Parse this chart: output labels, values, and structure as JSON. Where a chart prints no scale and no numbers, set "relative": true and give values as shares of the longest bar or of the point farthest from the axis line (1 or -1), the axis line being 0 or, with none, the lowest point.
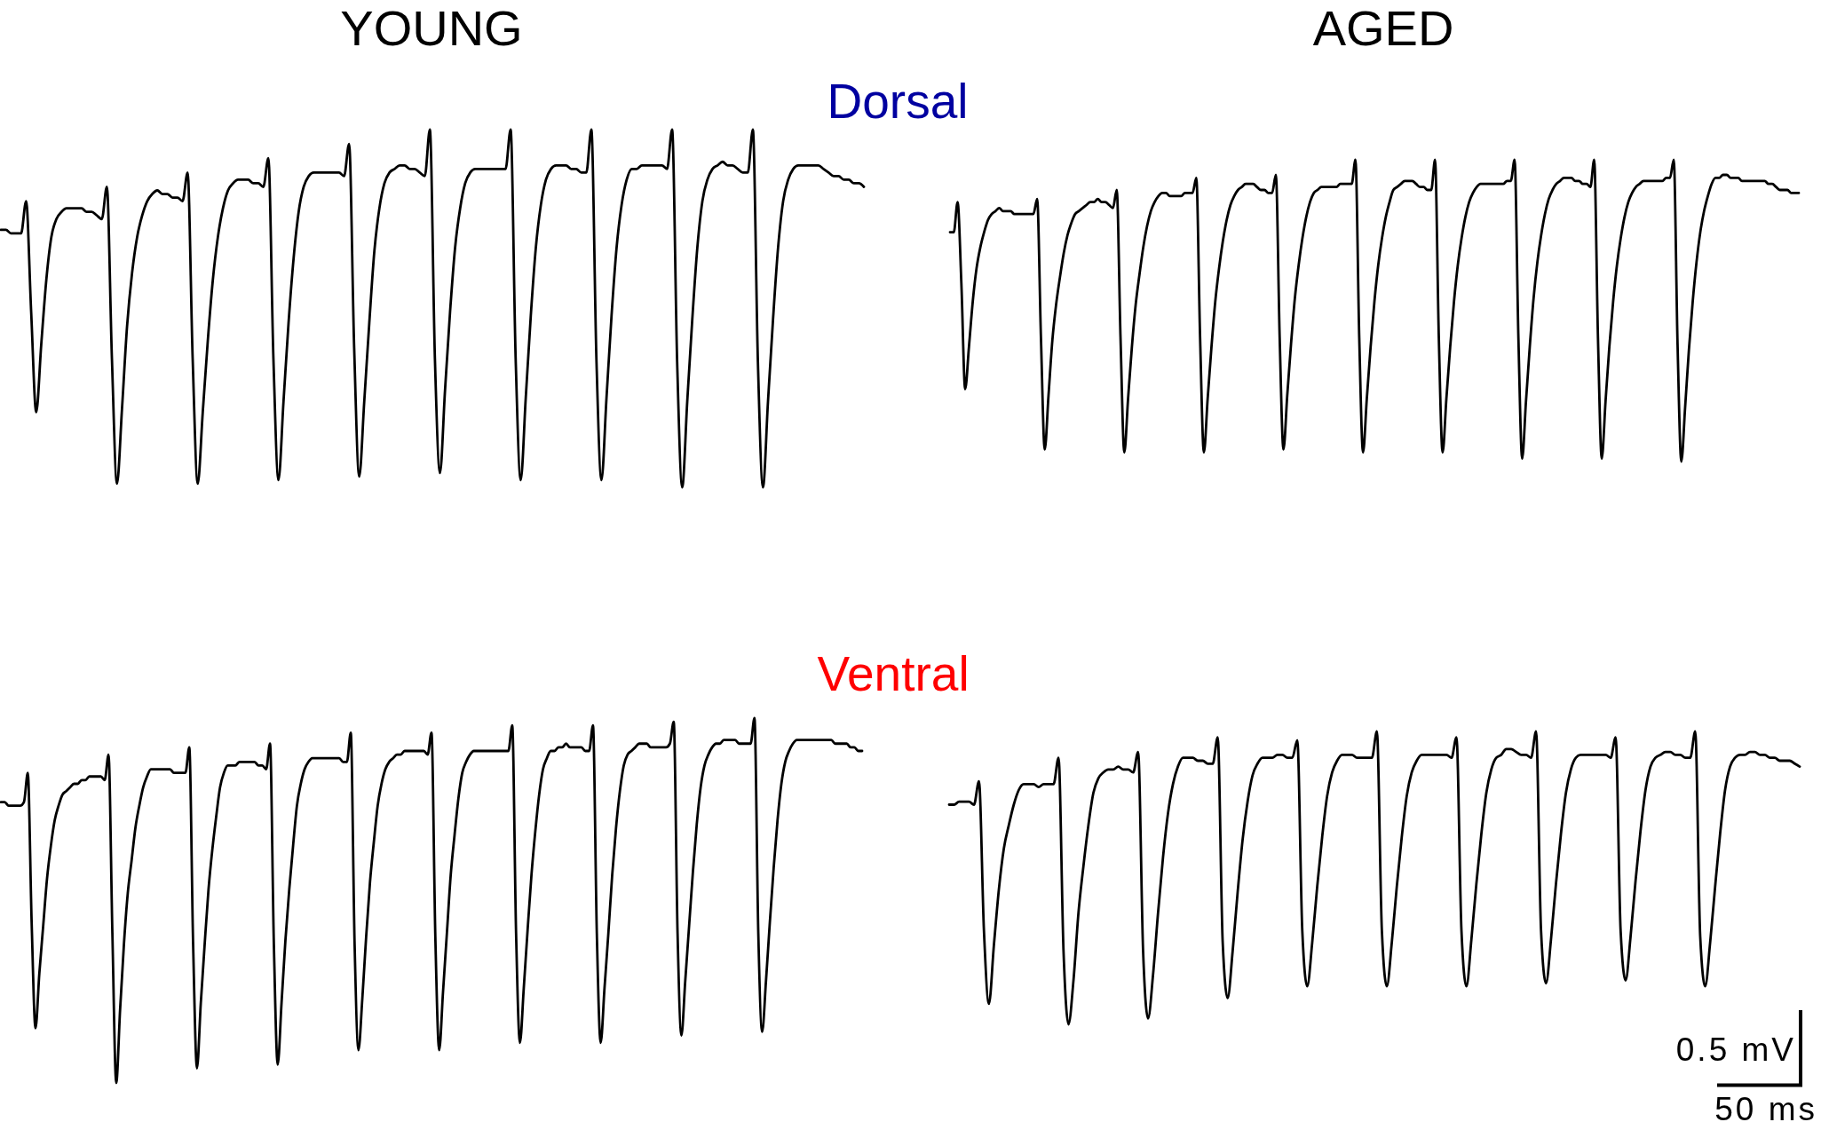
{
  "chart_data": [
    {
      "type": "line",
      "title": "YOUNG",
      "subtitle": "Dorsal",
      "relative": true,
      "color": "#000000",
      "categories": [
        null,
        null,
        null,
        null,
        null,
        null,
        null,
        null,
        null,
        null,
        null,
        null,
        null,
        null,
        null,
        null,
        null,
        null,
        null,
        null,
        null,
        null,
        null,
        null,
        null,
        null,
        null,
        null,
        null,
        null,
        null,
        null,
        null,
        null,
        null,
        null,
        null,
        null,
        null,
        null,
        null,
        null,
        null,
        null,
        null,
        null,
        null,
        null,
        null,
        null,
        null,
        null,
        null,
        null,
        null,
        null,
        null,
        null,
        null,
        null,
        null,
        null,
        null,
        null,
        null,
        null,
        null,
        null,
        null,
        null,
        null,
        null,
        null,
        null,
        null,
        null,
        null,
        null,
        null,
        null,
        null,
        null,
        null,
        null,
        null,
        null,
        null,
        null,
        null,
        null,
        null,
        null,
        null,
        null,
        null,
        null,
        null,
        null,
        null,
        null,
        null,
        null,
        null,
        null,
        null,
        null,
        null,
        null,
        null,
        null,
        null,
        null,
        null,
        null,
        null,
        null,
        null,
        null,
        null,
        null,
        null,
        null,
        null,
        null,
        null,
        null,
        null,
        null,
        null,
        null,
        null,
        null,
        null,
        null,
        null,
        null,
        null,
        null,
        null,
        null,
        null,
        null,
        null,
        null,
        null,
        null,
        null,
        null,
        null,
        null,
        null,
        null,
        null,
        null,
        null,
        null,
        null,
        null,
        null,
        null,
        null,
        null,
        null,
        null,
        null,
        null,
        null,
        null,
        null,
        null,
        null,
        null
      ],
      "values": [
        0.72,
        0.72,
        0.71,
        0.71,
        0.71,
        0.8,
        0.49,
        0.21,
        0.4,
        0.58,
        0.7,
        0.75,
        0.77,
        0.78,
        0.78,
        0.78,
        0.78,
        0.77,
        0.77,
        0.76,
        0.75,
        0.84,
        0.36,
        0.01,
        0.22,
        0.45,
        0.6,
        0.7,
        0.76,
        0.8,
        0.82,
        0.83,
        0.82,
        0.82,
        0.81,
        0.81,
        0.8,
        0.88,
        0.36,
        0.01,
        0.21,
        0.41,
        0.58,
        0.7,
        0.78,
        0.83,
        0.85,
        0.86,
        0.86,
        0.86,
        0.85,
        0.85,
        0.84,
        0.92,
        0.36,
        0.02,
        0.24,
        0.46,
        0.64,
        0.77,
        0.84,
        0.87,
        0.88,
        0.88,
        0.88,
        0.88,
        0.88,
        0.88,
        0.87,
        0.96,
        0.39,
        0.03,
        0.24,
        0.46,
        0.66,
        0.78,
        0.85,
        0.88,
        0.89,
        0.9,
        0.9,
        0.89,
        0.89,
        0.88,
        0.87,
        1,
        0.36,
        0.04,
        0.27,
        0.49,
        0.67,
        0.78,
        0.85,
        0.88,
        0.89,
        0.89,
        0.89,
        0.89,
        0.89,
        0.89,
        0.89,
        1,
        0.36,
        0.02,
        0.25,
        0.48,
        0.67,
        0.79,
        0.86,
        0.89,
        0.9,
        0.9,
        0.9,
        0.89,
        0.89,
        0.88,
        0.88,
        1,
        0.36,
        0.02,
        0.25,
        0.48,
        0.67,
        0.79,
        0.86,
        0.89,
        0.89,
        0.9,
        0.9,
        0.9,
        0.9,
        0.9,
        0.89,
        1,
        0.35,
        0,
        0.24,
        0.47,
        0.67,
        0.8,
        0.86,
        0.89,
        0.9,
        0.91,
        0.9,
        0.9,
        0.89,
        0.88,
        0.88,
        1,
        0.35,
        0,
        0.24,
        0.47,
        0.67,
        0.8,
        0.86,
        0.89,
        0.9,
        0.9,
        0.9,
        0.9,
        0.9,
        0.89,
        0.88,
        0.87,
        0.87,
        0.86,
        0.86,
        0.85,
        0.85,
        0.84
      ]
    },
    {
      "type": "line",
      "title": "AGED",
      "relative": true,
      "color": "#000000",
      "categories": [
        null,
        null,
        null,
        null,
        null,
        null,
        null,
        null,
        null,
        null,
        null,
        null,
        null,
        null,
        null,
        null,
        null,
        null,
        null,
        null,
        null,
        null,
        null,
        null,
        null,
        null,
        null,
        null,
        null,
        null,
        null,
        null,
        null,
        null,
        null,
        null,
        null,
        null,
        null,
        null,
        null,
        null,
        null,
        null,
        null,
        null,
        null,
        null,
        null,
        null,
        null,
        null,
        null,
        null,
        null,
        null,
        null,
        null,
        null,
        null,
        null,
        null,
        null,
        null,
        null,
        null,
        null,
        null,
        null,
        null,
        null,
        null,
        null,
        null,
        null,
        null,
        null,
        null,
        null,
        null,
        null,
        null,
        null,
        null,
        null,
        null,
        null,
        null,
        null,
        null,
        null,
        null,
        null,
        null,
        null,
        null,
        null,
        null,
        null,
        null,
        null,
        null,
        null,
        null,
        null,
        null,
        null,
        null,
        null,
        null,
        null,
        null,
        null,
        null,
        null,
        null,
        null,
        null,
        null,
        null,
        null,
        null,
        null,
        null,
        null,
        null,
        null,
        null,
        null,
        null,
        null,
        null,
        null,
        null,
        null,
        null,
        null,
        null,
        null,
        null,
        null,
        null,
        null,
        null,
        null,
        null,
        null,
        null,
        null,
        null,
        null,
        null,
        null,
        null,
        null,
        null,
        null,
        null,
        null,
        null,
        null,
        null,
        null,
        null,
        null,
        null,
        null,
        null,
        null,
        null,
        null,
        null,
        null,
        null,
        null,
        null,
        null,
        null,
        null,
        null,
        null,
        null,
        null,
        null,
        null,
        null,
        null,
        null,
        null,
        null,
        null,
        null,
        null,
        null,
        null,
        null,
        null,
        null,
        null,
        null,
        null,
        null,
        null,
        null,
        null,
        null,
        null,
        null,
        null,
        null,
        null,
        null,
        null,
        null,
        null,
        null,
        null,
        null,
        null,
        null,
        null,
        null,
        null,
        null,
        null
      ],
      "values": [
        0.76,
        0.76,
        0.86,
        0.59,
        0.24,
        0.38,
        0.53,
        0.64,
        0.71,
        0.76,
        0.8,
        0.82,
        0.83,
        0.84,
        0.83,
        0.83,
        0.83,
        0.82,
        0.82,
        0.82,
        0.82,
        0.82,
        0.82,
        0.87,
        0.41,
        0.04,
        0.22,
        0.4,
        0.52,
        0.61,
        0.69,
        0.75,
        0.79,
        0.82,
        0.83,
        0.84,
        0.85,
        0.86,
        0.86,
        0.87,
        0.86,
        0.86,
        0.85,
        0.84,
        0.9,
        0.41,
        0.03,
        0.21,
        0.38,
        0.52,
        0.62,
        0.71,
        0.78,
        0.83,
        0.86,
        0.88,
        0.89,
        0.89,
        0.88,
        0.88,
        0.88,
        0.88,
        0.89,
        0.89,
        0.89,
        0.94,
        0.41,
        0.03,
        0.21,
        0.38,
        0.53,
        0.64,
        0.73,
        0.8,
        0.85,
        0.88,
        0.9,
        0.91,
        0.92,
        0.92,
        0.92,
        0.91,
        0.9,
        0.9,
        0.89,
        0.89,
        0.95,
        0.41,
        0.04,
        0.22,
        0.39,
        0.54,
        0.65,
        0.74,
        0.81,
        0.86,
        0.89,
        0.9,
        0.91,
        0.91,
        0.91,
        0.91,
        0.91,
        0.92,
        0.92,
        0.92,
        0.92,
        1,
        0.41,
        0.03,
        0.21,
        0.38,
        0.53,
        0.65,
        0.74,
        0.81,
        0.86,
        0.9,
        0.91,
        0.92,
        0.93,
        0.93,
        0.93,
        0.92,
        0.91,
        0.91,
        0.9,
        0.9,
        1,
        0.41,
        0.03,
        0.21,
        0.38,
        0.53,
        0.65,
        0.74,
        0.81,
        0.86,
        0.89,
        0.91,
        0.92,
        0.92,
        0.92,
        0.92,
        0.92,
        0.92,
        0.92,
        0.93,
        0.93,
        1,
        0.41,
        0.01,
        0.2,
        0.38,
        0.54,
        0.66,
        0.75,
        0.82,
        0.87,
        0.9,
        0.92,
        0.93,
        0.94,
        0.94,
        0.94,
        0.93,
        0.93,
        0.92,
        0.92,
        0.91,
        1,
        0.41,
        0.01,
        0.2,
        0.38,
        0.53,
        0.65,
        0.74,
        0.81,
        0.86,
        0.89,
        0.91,
        0.92,
        0.93,
        0.93,
        0.93,
        0.93,
        0.93,
        0.93,
        0.94,
        0.94,
        1,
        0.39,
        0,
        0.18,
        0.37,
        0.53,
        0.66,
        0.76,
        0.83,
        0.88,
        0.92,
        0.94,
        0.94,
        0.95,
        0.95,
        0.94,
        0.94,
        0.94,
        0.93,
        0.93,
        0.93,
        0.93,
        0.93,
        0.93,
        0.93,
        0.92,
        0.92,
        0.91,
        0.9,
        0.9,
        0.9,
        0.89,
        0.89,
        0.89
      ]
    },
    {
      "type": "line",
      "subtitle": "Ventral",
      "relative": true,
      "color": "#000000",
      "categories": [
        null,
        null,
        null,
        null,
        null,
        null,
        null,
        null,
        null,
        null,
        null,
        null,
        null,
        null,
        null,
        null,
        null,
        null,
        null,
        null,
        null,
        null,
        null,
        null,
        null,
        null,
        null,
        null,
        null,
        null,
        null,
        null,
        null,
        null,
        null,
        null,
        null,
        null,
        null,
        null,
        null,
        null,
        null,
        null,
        null,
        null,
        null,
        null,
        null,
        null,
        null,
        null,
        null,
        null,
        null,
        null,
        null,
        null,
        null,
        null,
        null,
        null,
        null,
        null,
        null,
        null,
        null,
        null,
        null,
        null,
        null,
        null,
        null,
        null,
        null,
        null,
        null,
        null,
        null,
        null,
        null,
        null,
        null,
        null,
        null,
        null,
        null,
        null,
        null,
        null,
        null,
        null,
        null,
        null,
        null,
        null,
        null,
        null,
        null,
        null,
        null,
        null,
        null,
        null,
        null,
        null,
        null,
        null,
        null,
        null,
        null,
        null,
        null,
        null,
        null,
        null,
        null,
        null,
        null,
        null,
        null,
        null,
        null,
        null,
        null,
        null,
        null,
        null,
        null,
        null,
        null,
        null,
        null,
        null,
        null,
        null,
        null,
        null,
        null,
        null,
        null,
        null,
        null,
        null,
        null,
        null,
        null,
        null,
        null,
        null,
        null,
        null,
        null,
        null,
        null,
        null,
        null,
        null,
        null,
        null,
        null,
        null,
        null,
        null,
        null,
        null,
        null,
        null,
        null,
        null,
        null,
        null,
        null,
        null,
        null,
        null,
        null,
        null,
        null,
        null,
        null,
        null,
        null,
        null,
        null,
        null,
        null,
        null,
        null,
        null,
        null,
        null,
        null,
        null,
        null,
        null,
        null,
        null,
        null,
        null,
        null,
        null,
        null,
        null,
        null,
        null,
        null,
        null,
        null,
        null,
        null,
        null,
        null,
        null,
        null,
        null,
        null,
        null,
        null,
        null,
        null,
        null,
        null,
        null,
        null
      ],
      "values": [
        0.77,
        0.77,
        0.76,
        0.76,
        0.76,
        0.76,
        0.77,
        0.85,
        0.44,
        0.15,
        0.3,
        0.43,
        0.56,
        0.65,
        0.72,
        0.76,
        0.79,
        0.8,
        0.81,
        0.82,
        0.82,
        0.83,
        0.83,
        0.84,
        0.84,
        0.84,
        0.84,
        0.83,
        0.9,
        0.41,
        0,
        0.2,
        0.38,
        0.52,
        0.61,
        0.7,
        0.76,
        0.81,
        0.84,
        0.86,
        0.86,
        0.86,
        0.86,
        0.86,
        0.86,
        0.85,
        0.85,
        0.85,
        0.85,
        0.92,
        0.38,
        0.04,
        0.22,
        0.38,
        0.53,
        0.64,
        0.73,
        0.81,
        0.85,
        0.87,
        0.87,
        0.87,
        0.88,
        0.88,
        0.88,
        0.88,
        0.88,
        0.87,
        0.87,
        0.86,
        0.93,
        0.38,
        0.05,
        0.22,
        0.39,
        0.53,
        0.65,
        0.76,
        0.82,
        0.86,
        0.88,
        0.89,
        0.89,
        0.89,
        0.89,
        0.89,
        0.89,
        0.89,
        0.89,
        0.88,
        0.88,
        0.96,
        0.38,
        0.09,
        0.23,
        0.4,
        0.55,
        0.66,
        0.76,
        0.82,
        0.86,
        0.88,
        0.89,
        0.9,
        0.9,
        0.91,
        0.91,
        0.91,
        0.91,
        0.91,
        0.91,
        0.9,
        0.96,
        0.4,
        0.09,
        0.25,
        0.41,
        0.57,
        0.68,
        0.78,
        0.85,
        0.88,
        0.9,
        0.91,
        0.91,
        0.91,
        0.91,
        0.91,
        0.91,
        0.91,
        0.91,
        0.91,
        0.91,
        0.98,
        0.41,
        0.11,
        0.26,
        0.42,
        0.57,
        0.69,
        0.79,
        0.86,
        0.89,
        0.91,
        0.91,
        0.92,
        0.92,
        0.93,
        0.92,
        0.92,
        0.92,
        0.92,
        0.91,
        0.91,
        0.98,
        0.41,
        0.11,
        0.26,
        0.41,
        0.57,
        0.7,
        0.8,
        0.87,
        0.9,
        0.91,
        0.92,
        0.93,
        0.93,
        0.93,
        0.92,
        0.92,
        0.92,
        0.92,
        0.92,
        0.93,
        0.99,
        0.41,
        0.13,
        0.28,
        0.43,
        0.58,
        0.71,
        0.81,
        0.87,
        0.9,
        0.92,
        0.93,
        0.93,
        0.94,
        0.94,
        0.94,
        0.94,
        0.93,
        0.93,
        0.93,
        0.93,
        1,
        0.41,
        0.14,
        0.28,
        0.44,
        0.59,
        0.72,
        0.82,
        0.88,
        0.91,
        0.93,
        0.94,
        0.94,
        0.94,
        0.94,
        0.94,
        0.94,
        0.94,
        0.94,
        0.94,
        0.94,
        0.93,
        0.93,
        0.93,
        0.93,
        0.92,
        0.92,
        0.91,
        0.91
      ]
    },
    {
      "type": "line",
      "relative": true,
      "color": "#000000",
      "annotations": [
        "0.5 mV",
        "50 ms"
      ],
      "categories": [
        null,
        null,
        null,
        null,
        null,
        null,
        null,
        null,
        null,
        null,
        null,
        null,
        null,
        null,
        null,
        null,
        null,
        null,
        null,
        null,
        null,
        null,
        null,
        null,
        null,
        null,
        null,
        null,
        null,
        null,
        null,
        null,
        null,
        null,
        null,
        null,
        null,
        null,
        null,
        null,
        null,
        null,
        null,
        null,
        null,
        null,
        null,
        null,
        null,
        null,
        null,
        null,
        null,
        null,
        null,
        null,
        null,
        null,
        null,
        null,
        null,
        null,
        null,
        null,
        null,
        null,
        null,
        null,
        null,
        null,
        null,
        null,
        null,
        null,
        null,
        null,
        null,
        null,
        null,
        null,
        null,
        null,
        null,
        null,
        null,
        null,
        null,
        null,
        null,
        null,
        null,
        null,
        null,
        null,
        null,
        null,
        null,
        null,
        null,
        null,
        null,
        null,
        null,
        null,
        null,
        null,
        null,
        null,
        null,
        null,
        null,
        null,
        null,
        null,
        null,
        null,
        null,
        null,
        null,
        null,
        null,
        null,
        null,
        null,
        null,
        null,
        null,
        null,
        null,
        null,
        null,
        null,
        null,
        null,
        null,
        null,
        null,
        null,
        null,
        null,
        null,
        null,
        null,
        null,
        null,
        null,
        null,
        null,
        null,
        null,
        null,
        null,
        null,
        null,
        null,
        null,
        null,
        null,
        null,
        null,
        null,
        null,
        null,
        null,
        null,
        null,
        null,
        null,
        null,
        null,
        null,
        null
      ],
      "values": [
        0.75,
        0.75,
        0.76,
        0.76,
        0.76,
        0.75,
        0.83,
        0.32,
        0.07,
        0.27,
        0.46,
        0.6,
        0.68,
        0.75,
        0.8,
        0.82,
        0.82,
        0.82,
        0.81,
        0.82,
        0.82,
        0.82,
        0.91,
        0.25,
        0,
        0.15,
        0.38,
        0.54,
        0.68,
        0.79,
        0.84,
        0.86,
        0.87,
        0.87,
        0.88,
        0.87,
        0.87,
        0.86,
        0.93,
        0.25,
        0.02,
        0.17,
        0.38,
        0.57,
        0.72,
        0.82,
        0.88,
        0.91,
        0.91,
        0.91,
        0.9,
        0.9,
        0.89,
        0.89,
        0.98,
        0.28,
        0.09,
        0.25,
        0.45,
        0.63,
        0.76,
        0.85,
        0.89,
        0.91,
        0.91,
        0.91,
        0.92,
        0.92,
        0.91,
        0.91,
        0.97,
        0.32,
        0.13,
        0.28,
        0.47,
        0.64,
        0.78,
        0.86,
        0.9,
        0.92,
        0.92,
        0.92,
        0.91,
        0.91,
        0.91,
        0.91,
        1,
        0.32,
        0.13,
        0.28,
        0.47,
        0.64,
        0.78,
        0.86,
        0.9,
        0.92,
        0.92,
        0.92,
        0.92,
        0.92,
        0.92,
        0.91,
        0.98,
        0.32,
        0.13,
        0.29,
        0.48,
        0.65,
        0.79,
        0.87,
        0.91,
        0.92,
        0.94,
        0.94,
        0.93,
        0.92,
        0.92,
        0.91,
        1,
        0.32,
        0.14,
        0.29,
        0.48,
        0.65,
        0.79,
        0.87,
        0.91,
        0.92,
        0.92,
        0.92,
        0.92,
        0.92,
        0.92,
        0.91,
        0.98,
        0.32,
        0.15,
        0.3,
        0.49,
        0.66,
        0.8,
        0.88,
        0.91,
        0.92,
        0.93,
        0.93,
        0.92,
        0.92,
        0.91,
        0.91,
        1,
        0.3,
        0.13,
        0.28,
        0.47,
        0.65,
        0.8,
        0.88,
        0.91,
        0.92,
        0.92,
        0.93,
        0.93,
        0.92,
        0.92,
        0.91,
        0.91,
        0.9,
        0.9,
        0.9,
        0.89,
        0.88
      ]
    }
  ]
}
